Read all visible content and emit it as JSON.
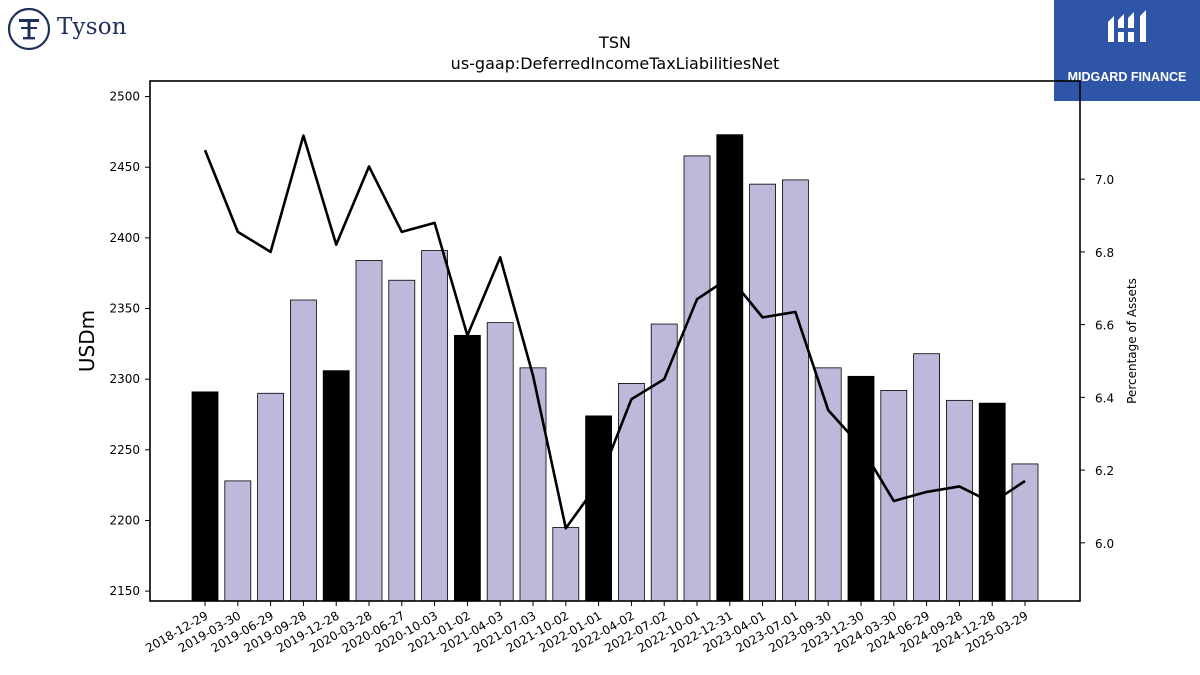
{
  "brand": {
    "company_name": "Tyson",
    "company_logo_icon": "tyson-t-seal-icon",
    "badge_icon": "midgard-m-icon",
    "badge_text": "MIDGARD FINANCE"
  },
  "chart_data": {
    "type": "bar",
    "title": "TSN",
    "subtitle": "us-gaap:DeferredIncomeTaxLiabilitiesNet",
    "ylabel": "USDm",
    "y2label": "Percentage of Assets",
    "categories": [
      "2018-12-29",
      "2019-03-30",
      "2019-06-29",
      "2019-09-28",
      "2019-12-28",
      "2020-03-28",
      "2020-06-27",
      "2020-10-03",
      "2021-01-02",
      "2021-04-03",
      "2021-07-03",
      "2021-10-02",
      "2022-01-01",
      "2022-04-02",
      "2022-07-02",
      "2022-10-01",
      "2022-12-31",
      "2023-04-01",
      "2023-07-01",
      "2023-09-30",
      "2023-12-30",
      "2024-03-30",
      "2024-06-29",
      "2024-09-28",
      "2024-12-28",
      "2025-03-29"
    ],
    "series": [
      {
        "type": "bar",
        "axis": "left",
        "values": [
          2291,
          2228,
          2290,
          2356,
          2306,
          2384,
          2370,
          2391,
          2331,
          2340,
          2308,
          2195,
          2274,
          2297,
          2339,
          2458,
          2473,
          2438,
          2441,
          2308,
          2302,
          2292,
          2318,
          2285,
          2283,
          2240
        ],
        "highlight": [
          true,
          false,
          false,
          false,
          true,
          false,
          false,
          false,
          true,
          false,
          false,
          false,
          true,
          false,
          false,
          false,
          true,
          false,
          false,
          false,
          true,
          false,
          false,
          false,
          true,
          false
        ]
      },
      {
        "type": "line",
        "axis": "right",
        "values": [
          7.08,
          6.855,
          6.8,
          7.12,
          6.82,
          7.035,
          6.855,
          6.88,
          6.57,
          6.785,
          6.46,
          6.04,
          6.165,
          6.395,
          6.45,
          6.67,
          6.73,
          6.62,
          6.635,
          6.365,
          6.265,
          6.115,
          6.14,
          6.155,
          6.11,
          6.17
        ]
      }
    ],
    "ylim": [
      2143,
      2511
    ],
    "y_ticks": [
      2150,
      2200,
      2250,
      2300,
      2350,
      2400,
      2450,
      2500
    ],
    "y2lim": [
      5.84,
      7.27
    ],
    "y2_ticks": [
      6.0,
      6.2,
      6.4,
      6.6,
      6.8,
      7.0
    ],
    "colors": {
      "bar": "#bcb9da",
      "bar_highlight": "#000000",
      "line": "#000000",
      "edge": "#000000"
    },
    "grid": false,
    "legend": "none"
  }
}
